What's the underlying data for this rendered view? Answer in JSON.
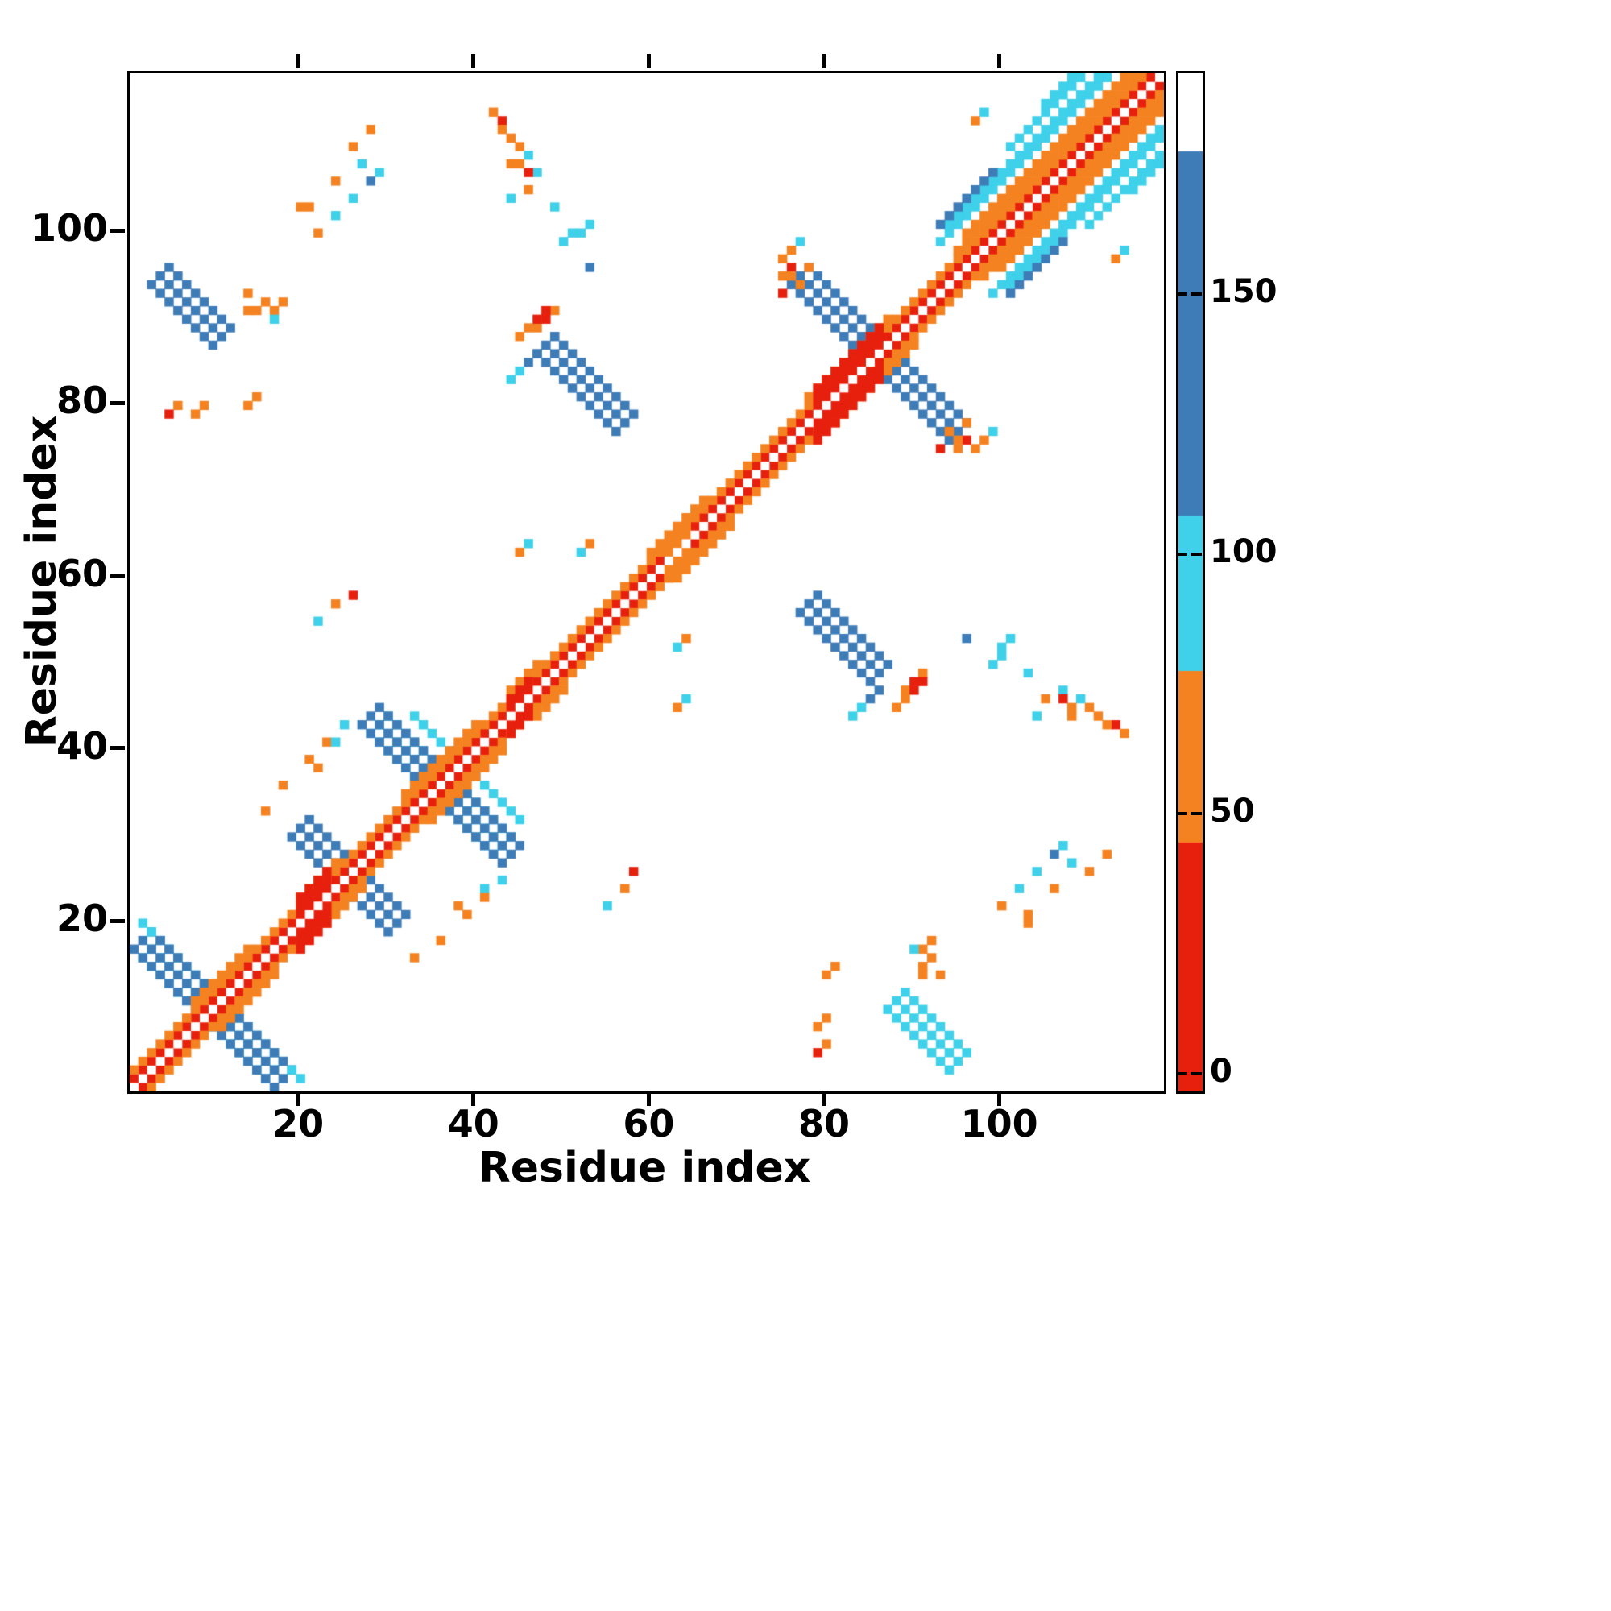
{
  "chart_data": {
    "type": "heatmap",
    "title": "",
    "xlabel": "Residue index",
    "ylabel": "Residue index",
    "x_range": [
      1,
      118
    ],
    "y_range": [
      1,
      118
    ],
    "x_ticks": [
      20,
      40,
      60,
      80,
      100
    ],
    "y_ticks": [
      20,
      40,
      60,
      80,
      100
    ],
    "grid": false,
    "symmetric": true,
    "background": "white = no contact",
    "colorbar": {
      "position": "right",
      "vmin": -3,
      "vmax": 193,
      "ticks": [
        0,
        50,
        100,
        150
      ],
      "bins": [
        {
          "max": 45,
          "color": "#e7200e"
        },
        {
          "max": 78,
          "color": "#f58220"
        },
        {
          "max": 108,
          "color": "#3fd0ea"
        },
        {
          "max": 178,
          "color": "#3e7cb8"
        },
        {
          "max": 200,
          "color": "#ffffff"
        }
      ]
    },
    "features": {
      "comment_columns": {
        "diag_segments": "[i1,i2,offset,value] band parallel to main diagonal, mirrored",
        "diag_blocks": "[i1,i2,halfwidth,value] thick block on main diagonal",
        "antidiag_segments": "[s,i1,i2,halfwidth,value] cells with i+j=s, i from i1..i2",
        "points": "[x,y,value] single cells, mirrored across diagonal"
      },
      "diag_segments": [
        [
          1,
          118,
          1,
          12
        ],
        [
          1,
          118,
          2,
          58
        ],
        [
          8,
          14,
          3,
          58
        ],
        [
          20,
          24,
          3,
          58
        ],
        [
          32,
          40,
          3,
          58
        ],
        [
          44,
          47,
          3,
          58
        ],
        [
          60,
          66,
          3,
          58
        ],
        [
          78,
          87,
          3,
          58
        ],
        [
          95,
          118,
          3,
          58
        ],
        [
          96,
          118,
          4,
          55
        ],
        [
          93,
          118,
          6,
          90
        ],
        [
          94,
          118,
          7,
          92
        ],
        [
          93,
          99,
          8,
          140
        ],
        [
          101,
          113,
          9,
          92
        ],
        [
          105,
          112,
          10,
          90
        ]
      ],
      "diag_blocks": [
        [
          20,
          23,
          3,
          10
        ],
        [
          44,
          46,
          2,
          12
        ],
        [
          62,
          64,
          2,
          58
        ],
        [
          79,
          86,
          3,
          9
        ]
      ],
      "antidiag_segments": [
        [
          20,
          3,
          17,
          2,
          92
        ],
        [
          20,
          2,
          18,
          2,
          140
        ],
        [
          51,
          20,
          31,
          2,
          140
        ],
        [
          72,
          29,
          43,
          2,
          92
        ],
        [
          72,
          28,
          44,
          2,
          140
        ],
        [
          77,
          33,
          45,
          1,
          90
        ],
        [
          172,
          77,
          95,
          2,
          140
        ],
        [
          135,
          48,
          57,
          2,
          138
        ],
        [
          135,
          78,
          86,
          2,
          138
        ],
        [
          99,
          4,
          11,
          2,
          140
        ],
        [
          99,
          88,
          95,
          2,
          96
        ]
      ],
      "points": [
        [
          5,
          79,
          10
        ],
        [
          6,
          80,
          55
        ],
        [
          14,
          80,
          55
        ],
        [
          15,
          81,
          58
        ],
        [
          14,
          91,
          55
        ],
        [
          17,
          91,
          55
        ],
        [
          18,
          92,
          58
        ],
        [
          20,
          103,
          55
        ],
        [
          24,
          106,
          55
        ],
        [
          26,
          110,
          55
        ],
        [
          27,
          108,
          90
        ],
        [
          29,
          107,
          92
        ],
        [
          28,
          112,
          55
        ],
        [
          43,
          113,
          10
        ],
        [
          43,
          112,
          55
        ],
        [
          44,
          111,
          58
        ],
        [
          45,
          110,
          55
        ],
        [
          46,
          109,
          90
        ],
        [
          47,
          107,
          92
        ],
        [
          44,
          108,
          55
        ],
        [
          42,
          114,
          55
        ],
        [
          48,
          90,
          10
        ],
        [
          47,
          89,
          55
        ],
        [
          49,
          91,
          55
        ],
        [
          45,
          84,
          90
        ],
        [
          46,
          85,
          140
        ],
        [
          44,
          83,
          92
        ],
        [
          47,
          86,
          140
        ],
        [
          50,
          99,
          90
        ],
        [
          51,
          100,
          92
        ],
        [
          53,
          101,
          90
        ],
        [
          75,
          97,
          55
        ],
        [
          76,
          98,
          58
        ],
        [
          75,
          95,
          55
        ],
        [
          77,
          99,
          90
        ],
        [
          76,
          96,
          10
        ],
        [
          90,
          47,
          10
        ],
        [
          91,
          48,
          12
        ],
        [
          88,
          45,
          55
        ],
        [
          89,
          46,
          55
        ],
        [
          96,
          53,
          140
        ],
        [
          100,
          52,
          90
        ],
        [
          103,
          49,
          92
        ],
        [
          105,
          46,
          55
        ],
        [
          107,
          46,
          12
        ],
        [
          108,
          45,
          55
        ],
        [
          104,
          44,
          90
        ],
        [
          100,
          22,
          55
        ],
        [
          102,
          24,
          90
        ],
        [
          104,
          26,
          92
        ],
        [
          106,
          28,
          140
        ],
        [
          103,
          21,
          55
        ],
        [
          91,
          15,
          58
        ],
        [
          92,
          16,
          55
        ],
        [
          93,
          14,
          55
        ],
        [
          90,
          17,
          90
        ],
        [
          79,
          8,
          55
        ],
        [
          80,
          9,
          58
        ],
        [
          94,
          77,
          55
        ],
        [
          95,
          76,
          58
        ],
        [
          93,
          75,
          10
        ],
        [
          96,
          78,
          55
        ],
        [
          3,
          19,
          92
        ],
        [
          2,
          20,
          90
        ],
        [
          22,
          38,
          55
        ],
        [
          23,
          41,
          55
        ],
        [
          25,
          43,
          90
        ],
        [
          36,
          18,
          55
        ],
        [
          39,
          21,
          55
        ],
        [
          41,
          24,
          90
        ],
        [
          33,
          16,
          58
        ],
        [
          57,
          24,
          55
        ],
        [
          55,
          22,
          90
        ],
        [
          58,
          26,
          10
        ],
        [
          63,
          45,
          55
        ],
        [
          64,
          46,
          90
        ],
        [
          52,
          63,
          90
        ],
        [
          53,
          64,
          55
        ],
        [
          113,
          97,
          55
        ],
        [
          114,
          98,
          90
        ]
      ]
    }
  }
}
